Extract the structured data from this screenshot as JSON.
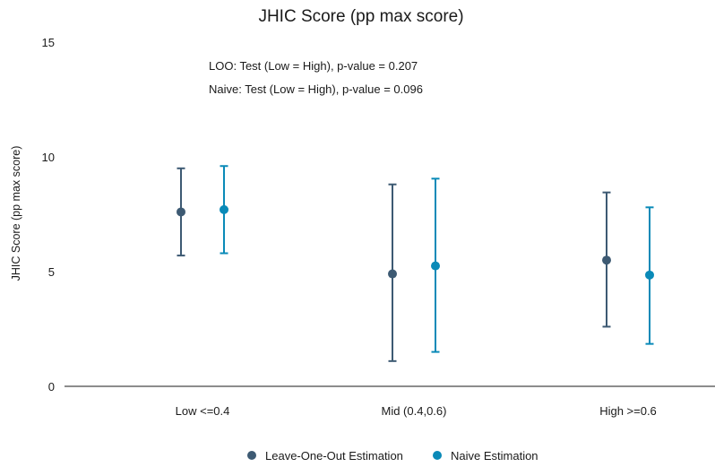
{
  "chart_data": {
    "type": "scatter",
    "title": "JHIC Score (pp max score)",
    "xlabel": "",
    "ylabel": "JHIC Score (pp max score)",
    "ylim": [
      0,
      15
    ],
    "yticks": [
      0,
      5,
      10,
      15
    ],
    "categories": [
      "Low <=0.4",
      "Mid (0.4,0.6)",
      "High >=0.6"
    ],
    "annotations": [
      "LOO: Test (Low = High), p-value = 0.207",
      "Naive: Test (Low = High), p-value = 0.096"
    ],
    "legend_position": "bottom",
    "grid": false,
    "series": [
      {
        "name": "Leave-One-Out Estimation",
        "color": "#3d5a73",
        "values": [
          7.6,
          4.9,
          5.5
        ],
        "lower": [
          5.7,
          1.1,
          2.6
        ],
        "upper": [
          9.5,
          8.8,
          8.45
        ]
      },
      {
        "name": "Naive Estimation",
        "color": "#0a8ab8",
        "values": [
          7.7,
          5.25,
          4.85
        ],
        "lower": [
          5.8,
          1.5,
          1.85
        ],
        "upper": [
          9.6,
          9.05,
          7.8
        ]
      }
    ]
  }
}
